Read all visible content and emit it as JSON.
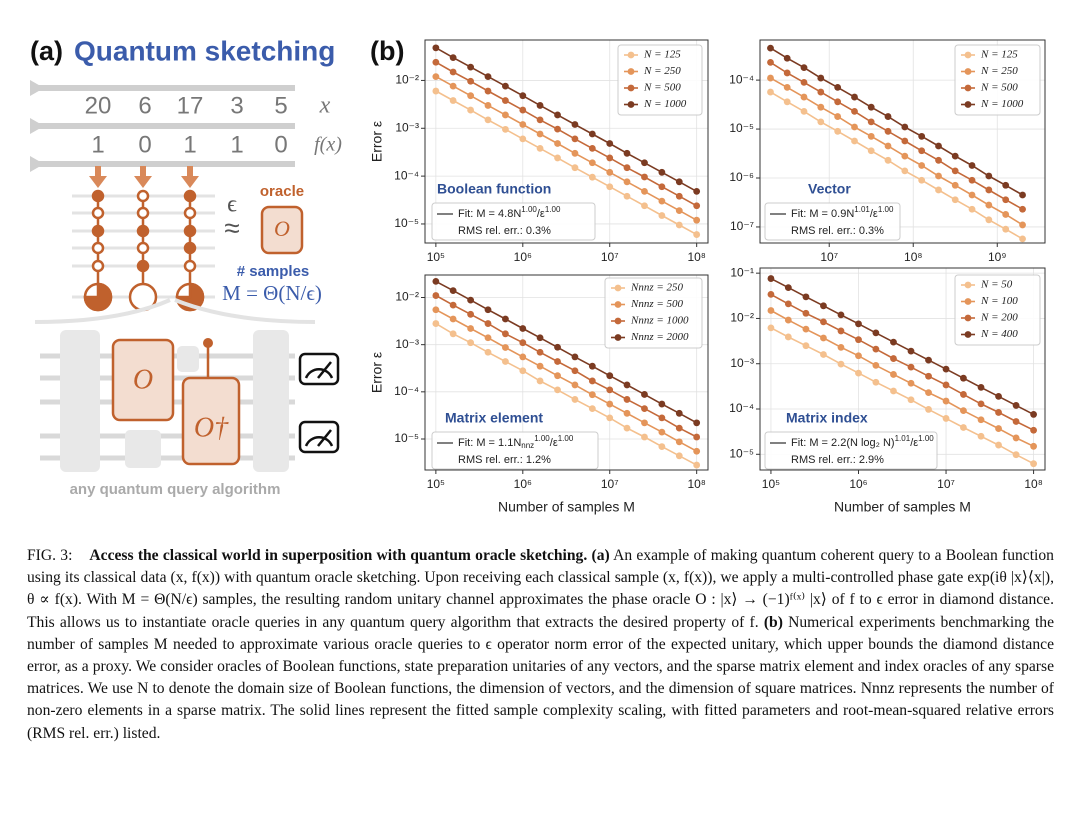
{
  "panel_a": {
    "label": "(a)",
    "title": "Quantum sketching",
    "x_values": [
      "20",
      "6",
      "17",
      "3",
      "5"
    ],
    "x_symbol": "x",
    "f_values": [
      "1",
      "0",
      "1",
      "1",
      "0"
    ],
    "f_symbol": "f(x)",
    "epsilon": "ϵ",
    "approx": "≈",
    "oracle_label": "oracle",
    "oracle_symbol": "O",
    "samples_label": "# samples",
    "samples_formula": "M = Θ(N/ϵ)",
    "circuit_oracle": "O",
    "circuit_oracle_dagger": "O†",
    "circuit_caption": "any quantum query algorithm"
  },
  "panel_b_label": "(b)",
  "chart_data": [
    {
      "type": "line",
      "title": "Boolean function",
      "log_x": true,
      "log_y": true,
      "grid": true,
      "legend": "upper right",
      "ylabel": "Error ε",
      "x": [
        100000.0,
        158000.0,
        251000.0,
        398000.0,
        631000.0,
        1000000.0,
        1580000.0,
        2510000.0,
        3980000.0,
        6310000.0,
        10000000.0,
        15800000.0,
        25100000.0,
        39800000.0,
        63100000.0,
        100000000.0
      ],
      "series": [
        {
          "name": "N = 125",
          "color": "#f4c08e",
          "values": [
            0.006,
            0.0038,
            0.0024,
            0.0015,
            0.00095,
            0.0006,
            0.00038,
            0.00024,
            0.00015,
            9.5e-05,
            6e-05,
            3.8e-05,
            2.4e-05,
            1.5e-05,
            9.5e-06,
            6e-06
          ]
        },
        {
          "name": "N = 250",
          "color": "#e4955a",
          "values": [
            0.012,
            0.0076,
            0.0048,
            0.003,
            0.0019,
            0.0012,
            0.00076,
            0.00048,
            0.0003,
            0.00019,
            0.00012,
            7.6e-05,
            4.8e-05,
            3e-05,
            1.9e-05,
            1.2e-05
          ]
        },
        {
          "name": "N = 500",
          "color": "#c4693a",
          "values": [
            0.024,
            0.015,
            0.0096,
            0.006,
            0.0038,
            0.0024,
            0.0015,
            0.00096,
            0.0006,
            0.00038,
            0.00024,
            0.00015,
            9.6e-05,
            6e-05,
            3.8e-05,
            2.4e-05
          ]
        },
        {
          "name": "N = 1000",
          "color": "#7b3b22",
          "values": [
            0.048,
            0.03,
            0.019,
            0.012,
            0.0076,
            0.0048,
            0.003,
            0.0019,
            0.0012,
            0.00076,
            0.00048,
            0.0003,
            0.00019,
            0.00012,
            7.6e-05,
            4.8e-05
          ]
        }
      ],
      "xlim": [
        75000,
        135000000
      ],
      "ylim": [
        4e-06,
        0.07
      ],
      "xticks": [
        {
          "value": 100000.0,
          "label": "10⁵"
        },
        {
          "value": 1000000.0,
          "label": "10⁶"
        },
        {
          "value": 10000000.0,
          "label": "10⁷"
        },
        {
          "value": 100000000.0,
          "label": "10⁸"
        }
      ],
      "yticks": [
        {
          "value": 1e-05,
          "label": "10⁻⁵"
        },
        {
          "value": 0.0001,
          "label": "10⁻⁴"
        },
        {
          "value": 0.001,
          "label": "10⁻³"
        },
        {
          "value": 0.01,
          "label": "10⁻²"
        }
      ],
      "fit_label": [
        {
          "text": "Fit: M = 4.8N"
        },
        {
          "text": "1.00",
          "sup": true
        },
        {
          "text": "/ε"
        },
        {
          "text": "1.00",
          "sup": true
        }
      ],
      "rms_label": "RMS rel. err.: 0.3%"
    },
    {
      "type": "line",
      "title": "Vector",
      "log_x": true,
      "log_y": true,
      "grid": true,
      "legend": "upper right",
      "x": [
        2000000.0,
        3160000.0,
        5010000.0,
        7940000.0,
        12600000.0,
        20000000.0,
        31600000.0,
        50100000.0,
        79400000.0,
        126000000.0,
        200000000.0,
        316000000.0,
        501000000.0,
        794000000.0,
        1260000000.0,
        2000000000.0
      ],
      "series": [
        {
          "name": "N = 125",
          "color": "#f4c08e",
          "values": [
            5.7e-05,
            3.6e-05,
            2.3e-05,
            1.4e-05,
            9e-06,
            5.7e-06,
            3.6e-06,
            2.3e-06,
            1.4e-06,
            9e-07,
            5.7e-07,
            3.6e-07,
            2.3e-07,
            1.4e-07,
            9e-08,
            5.7e-08
          ]
        },
        {
          "name": "N = 250",
          "color": "#e4955a",
          "values": [
            0.00011,
            7.1e-05,
            4.5e-05,
            2.8e-05,
            1.8e-05,
            1.1e-05,
            7.1e-06,
            4.5e-06,
            2.8e-06,
            1.8e-06,
            1.1e-06,
            7.1e-07,
            4.5e-07,
            2.8e-07,
            1.8e-07,
            1.1e-07
          ]
        },
        {
          "name": "N = 500",
          "color": "#c4693a",
          "values": [
            0.00023,
            0.00014,
            9e-05,
            5.7e-05,
            3.6e-05,
            2.3e-05,
            1.4e-05,
            9e-06,
            5.7e-06,
            3.6e-06,
            2.3e-06,
            1.4e-06,
            9e-07,
            5.7e-07,
            3.6e-07,
            2.3e-07
          ]
        },
        {
          "name": "N = 1000",
          "color": "#7b3b22",
          "values": [
            0.00045,
            0.00028,
            0.00018,
            0.00011,
            7.1e-05,
            4.5e-05,
            2.8e-05,
            1.8e-05,
            1.1e-05,
            7.1e-06,
            4.5e-06,
            2.8e-06,
            1.8e-06,
            1.1e-06,
            7.1e-07,
            4.5e-07
          ]
        }
      ],
      "xlim": [
        1500000,
        3700000000
      ],
      "ylim": [
        4.7e-08,
        0.00066
      ],
      "xticks": [
        {
          "value": 10000000.0,
          "label": "10⁷"
        },
        {
          "value": 100000000.0,
          "label": "10⁸"
        },
        {
          "value": 1000000000.0,
          "label": "10⁹"
        }
      ],
      "yticks": [
        {
          "value": 1e-07,
          "label": "10⁻⁷"
        },
        {
          "value": 1e-06,
          "label": "10⁻⁶"
        },
        {
          "value": 1e-05,
          "label": "10⁻⁵"
        },
        {
          "value": 0.0001,
          "label": "10⁻⁴"
        }
      ],
      "fit_label": [
        {
          "text": "Fit: M = 0.9N"
        },
        {
          "text": "1.01",
          "sup": true
        },
        {
          "text": "/ε"
        },
        {
          "text": "1.00",
          "sup": true
        }
      ],
      "rms_label": "RMS rel. err.: 0.3%"
    },
    {
      "type": "line",
      "title": "Matrix element",
      "log_x": true,
      "log_y": true,
      "grid": true,
      "legend": "upper right",
      "ylabel": "Error ε",
      "xlabel": "Number of samples M",
      "x": [
        100000.0,
        158000.0,
        251000.0,
        398000.0,
        631000.0,
        1000000.0,
        1580000.0,
        2510000.0,
        3980000.0,
        6310000.0,
        10000000.0,
        15800000.0,
        25100000.0,
        39800000.0,
        63100000.0,
        100000000.0
      ],
      "series": [
        {
          "name": "Nnnz = 250",
          "color": "#f4c08e",
          "values": [
            0.0028,
            0.0017,
            0.0011,
            0.00069,
            0.00044,
            0.00028,
            0.00017,
            0.00011,
            6.9e-05,
            4.4e-05,
            2.8e-05,
            1.7e-05,
            1.1e-05,
            6.9e-06,
            4.4e-06,
            2.8e-06
          ]
        },
        {
          "name": "Nnnz = 500",
          "color": "#e4955a",
          "values": [
            0.0055,
            0.0035,
            0.0022,
            0.0014,
            0.00087,
            0.00055,
            0.00035,
            0.00022,
            0.00014,
            8.7e-05,
            5.5e-05,
            3.5e-05,
            2.2e-05,
            1.4e-05,
            8.7e-06,
            5.5e-06
          ]
        },
        {
          "name": "Nnnz = 1000",
          "color": "#c4693a",
          "values": [
            0.011,
            0.0069,
            0.0044,
            0.0028,
            0.0017,
            0.0011,
            0.00069,
            0.00044,
            0.00028,
            0.00017,
            0.00011,
            6.9e-05,
            4.4e-05,
            2.8e-05,
            1.7e-05,
            1.1e-05
          ]
        },
        {
          "name": "Nnnz = 2000",
          "color": "#7b3b22",
          "values": [
            0.022,
            0.014,
            0.0088,
            0.0055,
            0.0035,
            0.0022,
            0.0014,
            0.00088,
            0.00055,
            0.00035,
            0.00022,
            0.00014,
            8.8e-05,
            5.5e-05,
            3.5e-05,
            2.2e-05
          ]
        }
      ],
      "xlim": [
        75000,
        135000000
      ],
      "ylim": [
        2.2e-06,
        0.03
      ],
      "xticks": [
        {
          "value": 100000.0,
          "label": "10⁵"
        },
        {
          "value": 1000000.0,
          "label": "10⁶"
        },
        {
          "value": 10000000.0,
          "label": "10⁷"
        },
        {
          "value": 100000000.0,
          "label": "10⁸"
        }
      ],
      "yticks": [
        {
          "value": 1e-05,
          "label": "10⁻⁵"
        },
        {
          "value": 0.0001,
          "label": "10⁻⁴"
        },
        {
          "value": 0.001,
          "label": "10⁻³"
        },
        {
          "value": 0.01,
          "label": "10⁻²"
        }
      ],
      "fit_label": [
        {
          "text": "Fit: M = 1.1N"
        },
        {
          "text": "nnz",
          "sub": true
        },
        {
          "text": "1.00",
          "sup": true
        },
        {
          "text": "/ε"
        },
        {
          "text": "1.00",
          "sup": true
        }
      ],
      "rms_label": "RMS rel. err.: 1.2%"
    },
    {
      "type": "line",
      "title": "Matrix index",
      "log_x": true,
      "log_y": true,
      "grid": true,
      "legend": "upper right",
      "xlabel": "Number of samples M",
      "x": [
        100000.0,
        158000.0,
        251000.0,
        398000.0,
        631000.0,
        1000000.0,
        1580000.0,
        2510000.0,
        3980000.0,
        6310000.0,
        10000000.0,
        15800000.0,
        25100000.0,
        39800000.0,
        63100000.0,
        100000000.0
      ],
      "series": [
        {
          "name": "N = 50",
          "color": "#f4c08e",
          "values": [
            0.0062,
            0.0039,
            0.0025,
            0.0016,
            0.00098,
            0.00062,
            0.00039,
            0.00025,
            0.00016,
            9.8e-05,
            6.2e-05,
            3.9e-05,
            2.5e-05,
            1.6e-05,
            9.8e-06,
            6.2e-06
          ]
        },
        {
          "name": "N = 100",
          "color": "#e4955a",
          "values": [
            0.015,
            0.0092,
            0.0058,
            0.0037,
            0.0023,
            0.0015,
            0.00092,
            0.00058,
            0.00037,
            0.00023,
            0.00015,
            9.2e-05,
            5.8e-05,
            3.7e-05,
            2.3e-05,
            1.5e-05
          ]
        },
        {
          "name": "N = 200",
          "color": "#c4693a",
          "values": [
            0.034,
            0.021,
            0.013,
            0.0084,
            0.0053,
            0.0034,
            0.0021,
            0.0013,
            0.00084,
            0.00053,
            0.00034,
            0.00021,
            0.00013,
            8.4e-05,
            5.3e-05,
            3.4e-05
          ]
        },
        {
          "name": "N = 400",
          "color": "#7b3b22",
          "values": [
            0.076,
            0.048,
            0.03,
            0.019,
            0.012,
            0.0076,
            0.0048,
            0.003,
            0.0019,
            0.0012,
            0.00076,
            0.00048,
            0.0003,
            0.00019,
            0.00012,
            7.6e-05
          ]
        }
      ],
      "xlim": [
        75000,
        135000000
      ],
      "ylim": [
        4.5e-06,
        0.13
      ],
      "xticks": [
        {
          "value": 100000.0,
          "label": "10⁵"
        },
        {
          "value": 1000000.0,
          "label": "10⁶"
        },
        {
          "value": 10000000.0,
          "label": "10⁷"
        },
        {
          "value": 100000000.0,
          "label": "10⁸"
        }
      ],
      "yticks": [
        {
          "value": 1e-05,
          "label": "10⁻⁵"
        },
        {
          "value": 0.0001,
          "label": "10⁻⁴"
        },
        {
          "value": 0.001,
          "label": "10⁻³"
        },
        {
          "value": 0.01,
          "label": "10⁻²"
        },
        {
          "value": 0.1,
          "label": "10⁻¹"
        }
      ],
      "fit_label": [
        {
          "text": "Fit: M = 2.2(N log₂ N)"
        },
        {
          "text": "1.01",
          "sup": true
        },
        {
          "text": "/ε"
        },
        {
          "text": "1.00",
          "sup": true
        }
      ],
      "rms_label": "RMS rel. err.: 2.9%"
    }
  ],
  "caption": {
    "label": "FIG. 3:",
    "title": "Access the classical world in superposition with quantum oracle sketching.",
    "part_a_label": "(a)",
    "part_a_text": "An example of making quantum coherent query to a Boolean function using its classical data (x, f(x)) with quantum oracle sketching. Upon receiving each classical sample (x, f(x)), we apply a multi-controlled phase gate exp(iθ |x⟩⟨x|), θ ∝ f(x). With M = Θ(N/ϵ) samples, the resulting random unitary channel approximates the phase oracle O : |x⟩ → (−1)ᶠ⁽ˣ⁾ |x⟩ of f to ϵ error in diamond distance. This allows us to instantiate oracle queries in any quantum query algorithm that extracts the desired property of f.",
    "part_b_label": "(b)",
    "part_b_text": "Numerical experiments benchmarking the number of samples M needed to approximate various oracle queries to ϵ operator norm error of the expected unitary, which upper bounds the diamond distance error, as a proxy. We consider oracles of Boolean functions, state preparation unitaries of any vectors, and the sparse matrix element and index oracles of any sparse matrices. We use N to denote the domain size of Boolean functions, the dimension of vectors, and the dimension of square matrices. Nnnz represents the number of non-zero elements in a sparse matrix. The solid lines represent the fitted sample complexity scaling, with fitted parameters and root-mean-squared relative errors (RMS rel. err.) listed."
  }
}
